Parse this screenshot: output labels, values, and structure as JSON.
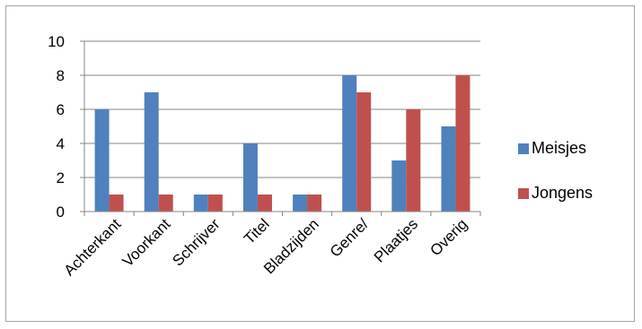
{
  "chart_data": {
    "type": "bar",
    "categories": [
      "Achterkant",
      "Voorkant",
      "Schrijver",
      "Titel",
      "Bladzijden",
      "Genre/",
      "Plaatjes",
      "Overig"
    ],
    "series": [
      {
        "name": "Meisjes",
        "values": [
          6,
          7,
          1,
          4,
          1,
          8,
          3,
          5
        ],
        "color": "#4f81bd"
      },
      {
        "name": "Jongens",
        "values": [
          1,
          1,
          1,
          1,
          1,
          7,
          6,
          8
        ],
        "color": "#c0504d"
      }
    ],
    "yticks": [
      0,
      2,
      4,
      6,
      8,
      10
    ],
    "ylim": [
      0,
      10
    ],
    "grid": true,
    "legend_position": "right"
  }
}
